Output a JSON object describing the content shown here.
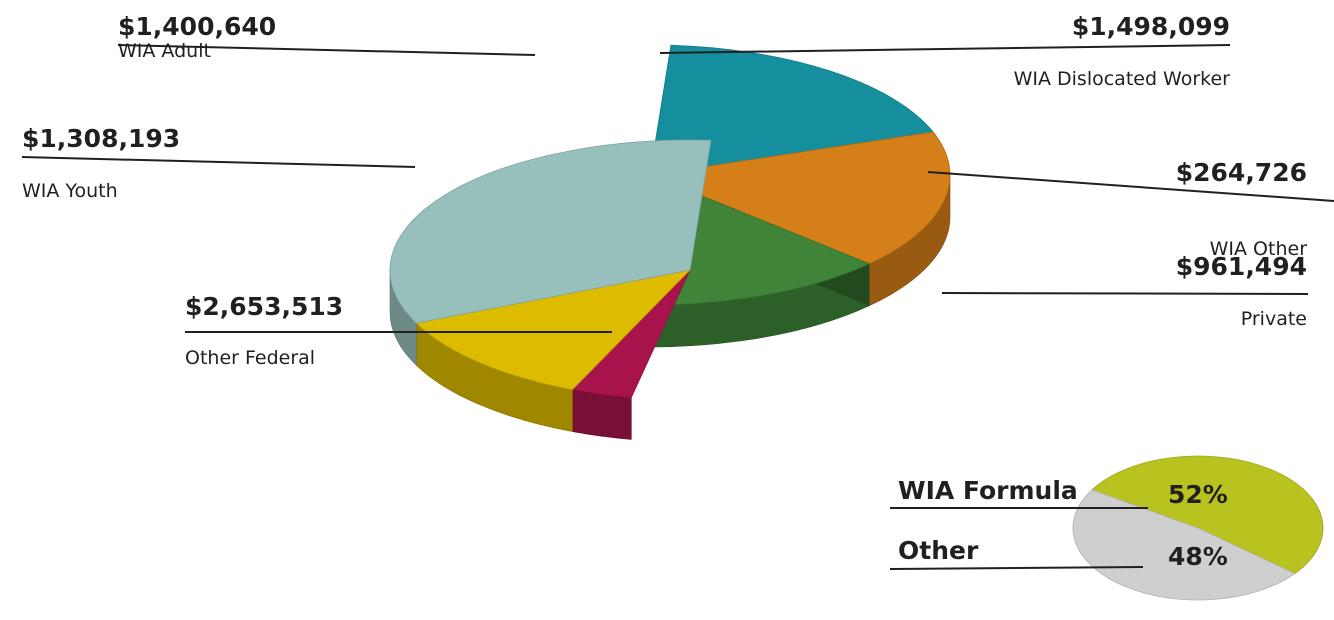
{
  "chart_data": [
    {
      "type": "pie",
      "slices": [
        {
          "label": "WIA Dislocated Worker",
          "value": 1498099,
          "display": "$1,498,099",
          "color": "#158f9d"
        },
        {
          "label": "WIA Adult",
          "value": 1400640,
          "display": "$1,400,640",
          "color": "#d47f17"
        },
        {
          "label": "WIA Youth",
          "value": 1308193,
          "display": "$1,308,193",
          "color": "#3f8438"
        },
        {
          "label": "WIA Other",
          "value": 264726,
          "display": "$264,726",
          "color": "#a8134c"
        },
        {
          "label": "Private",
          "value": 961494,
          "display": "$961,494",
          "color": "#ddbb00"
        },
        {
          "label": "Other Federal",
          "value": 2653513,
          "display": "$2,653,513",
          "color": "#97c0bc"
        }
      ]
    },
    {
      "type": "pie",
      "slices": [
        {
          "label": "WIA Formula",
          "value": 52,
          "display": "52%",
          "color": "#b9c31f"
        },
        {
          "label": "Other",
          "value": 48,
          "display": "48%",
          "color": "#cfcfcf"
        }
      ]
    }
  ]
}
